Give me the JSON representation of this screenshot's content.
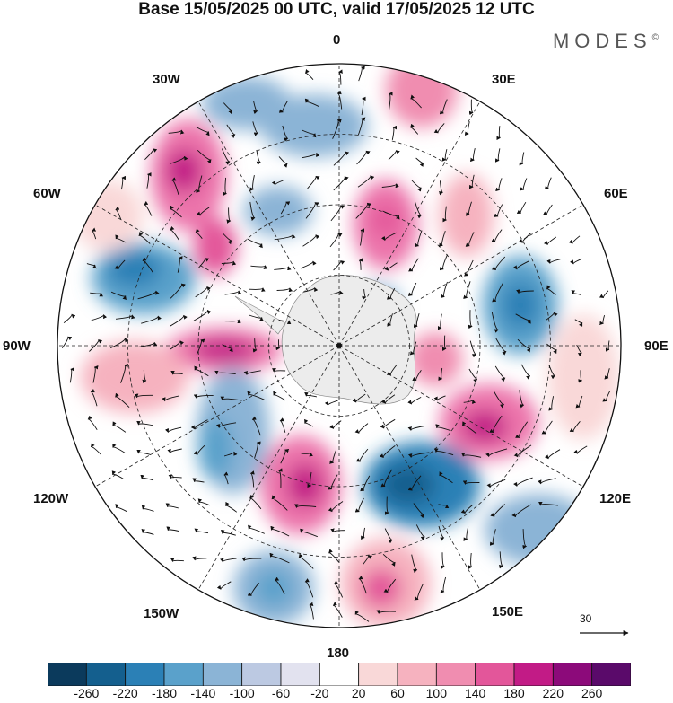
{
  "title": "Base 15/05/2025 00 UTC, valid 17/05/2025 12 UTC",
  "brand": "MODES",
  "brand_mark": "©",
  "longitude_labels": [
    {
      "id": "lon-0",
      "text": "0"
    },
    {
      "id": "lon-30e",
      "text": "30E"
    },
    {
      "id": "lon-60e",
      "text": "60E"
    },
    {
      "id": "lon-90e",
      "text": "90E"
    },
    {
      "id": "lon-120e",
      "text": "120E"
    },
    {
      "id": "lon-150e",
      "text": "150E"
    },
    {
      "id": "lon-180",
      "text": "180"
    },
    {
      "id": "lon-150w",
      "text": "150W"
    },
    {
      "id": "lon-120w",
      "text": "120W"
    },
    {
      "id": "lon-90w",
      "text": "90W"
    },
    {
      "id": "lon-60w",
      "text": "60W"
    },
    {
      "id": "lon-30w",
      "text": "30W"
    }
  ],
  "reference_vector": {
    "value": "30"
  },
  "colorbar": {
    "colors": [
      "#0b3a5c",
      "#145f8e",
      "#2b80b6",
      "#5aa1cb",
      "#8bb4d6",
      "#bcc9e2",
      "#e2e2ef",
      "#ffffff",
      "#f9d8d8",
      "#f6b2bf",
      "#f08db0",
      "#e3569a",
      "#c21b86",
      "#8c0a7a",
      "#5a0a6a"
    ],
    "ticks": [
      "-260",
      "-220",
      "-180",
      "-140",
      "-100",
      "-60",
      "-20",
      "20",
      "60",
      "100",
      "140",
      "180",
      "220",
      "260"
    ]
  },
  "colors": {
    "land": "#ececec",
    "grid": "#222222",
    "vector": "#111111"
  }
}
